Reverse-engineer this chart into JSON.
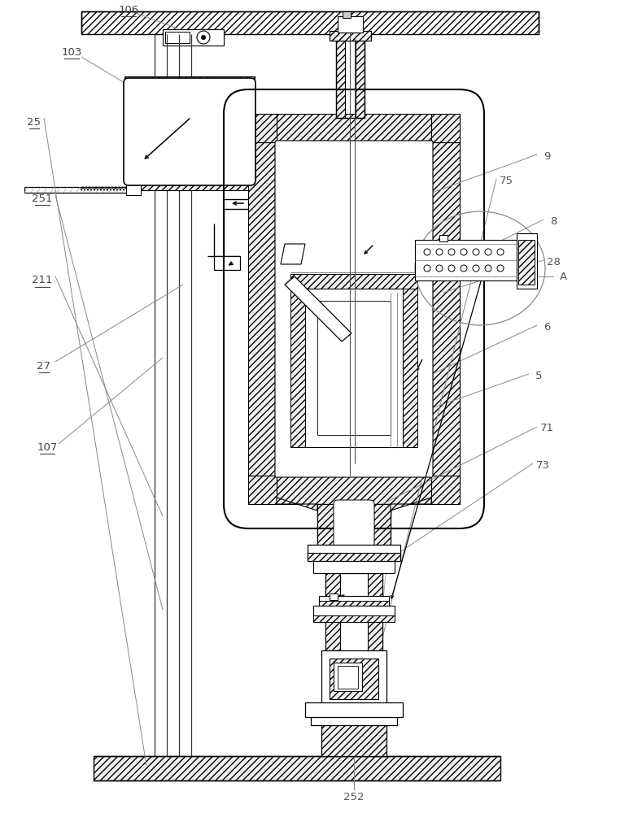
{
  "bg_color": "#ffffff",
  "lc": "#000000",
  "lc_gray": "#888888",
  "lc_label": "#777777",
  "lw": 1.0,
  "hatch": "////",
  "hatch_color": "#aaaaaa"
}
